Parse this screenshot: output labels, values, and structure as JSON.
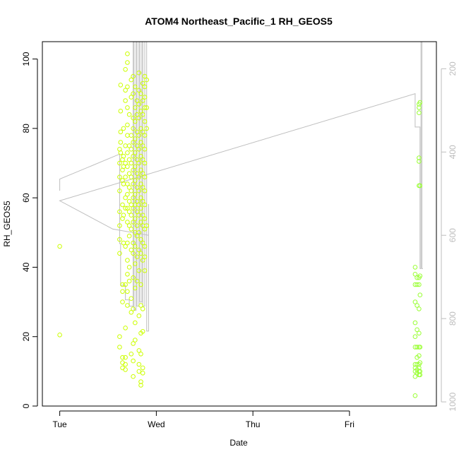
{
  "chart_data": {
    "type": "scatter",
    "title": "ATOM4 Northeast_Pacific_1 RH_GEOS5",
    "xlabel": "Date",
    "ylabel": "RH_GEOS5",
    "x_axis": {
      "type": "date",
      "ticks": [
        {
          "label": "Tue",
          "day": 0
        },
        {
          "label": "Wed",
          "day": 1
        },
        {
          "label": "Thu",
          "day": 2
        },
        {
          "label": "Fri",
          "day": 3
        }
      ],
      "xlim_days": [
        -0.18,
        3.9
      ]
    },
    "y_axis": {
      "ylim": [
        0,
        105
      ],
      "ticks": [
        0,
        20,
        40,
        60,
        80,
        100
      ]
    },
    "y2_axis": {
      "ticks": [
        200,
        400,
        600,
        800,
        1000
      ],
      "reversed": true,
      "ylim": [
        1010,
        135
      ],
      "color": "#bdbdbd"
    },
    "colors": {
      "points_early": "#ccff00",
      "points_late": "#99ff33",
      "profile_line": "#bebebe",
      "axis": "#000000"
    },
    "series": [
      {
        "name": "",
        "marker": "open-circle",
        "color_key": "points_early",
        "points": [
          [
            0.0,
            46
          ],
          [
            0.0,
            20.5
          ],
          [
            0.62,
            74
          ],
          [
            0.62,
            70
          ],
          [
            0.62,
            66
          ],
          [
            0.62,
            62
          ],
          [
            0.62,
            56
          ],
          [
            0.62,
            52
          ],
          [
            0.62,
            48
          ],
          [
            0.62,
            44
          ],
          [
            0.62,
            20
          ],
          [
            0.62,
            17
          ],
          [
            0.63,
            92.5
          ],
          [
            0.63,
            85
          ],
          [
            0.63,
            79
          ],
          [
            0.63,
            76
          ],
          [
            0.63,
            73
          ],
          [
            0.65,
            71
          ],
          [
            0.65,
            68
          ],
          [
            0.65,
            65
          ],
          [
            0.65,
            58
          ],
          [
            0.65,
            54
          ],
          [
            0.65,
            35
          ],
          [
            0.65,
            33
          ],
          [
            0.65,
            30
          ],
          [
            0.65,
            14
          ],
          [
            0.65,
            12.5
          ],
          [
            0.65,
            11
          ],
          [
            0.66,
            80
          ],
          [
            0.66,
            72
          ],
          [
            0.66,
            69
          ],
          [
            0.66,
            64
          ],
          [
            0.66,
            55
          ],
          [
            0.66,
            47
          ],
          [
            0.68,
            97
          ],
          [
            0.68,
            91
          ],
          [
            0.68,
            88
          ],
          [
            0.68,
            75
          ],
          [
            0.68,
            70
          ],
          [
            0.68,
            66
          ],
          [
            0.68,
            60
          ],
          [
            0.68,
            57
          ],
          [
            0.68,
            46
          ],
          [
            0.68,
            35
          ],
          [
            0.68,
            22.5
          ],
          [
            0.68,
            14
          ],
          [
            0.68,
            12
          ],
          [
            0.68,
            10.5
          ],
          [
            0.7,
            101.5
          ],
          [
            0.7,
            99
          ],
          [
            0.7,
            92
          ],
          [
            0.7,
            86
          ],
          [
            0.7,
            81
          ],
          [
            0.7,
            78
          ],
          [
            0.7,
            73
          ],
          [
            0.7,
            69
          ],
          [
            0.7,
            64
          ],
          [
            0.7,
            61
          ],
          [
            0.7,
            57
          ],
          [
            0.7,
            53
          ],
          [
            0.7,
            47
          ],
          [
            0.7,
            42
          ],
          [
            0.7,
            38
          ],
          [
            0.7,
            33
          ],
          [
            0.7,
            29
          ],
          [
            0.72,
            84
          ],
          [
            0.72,
            75
          ],
          [
            0.72,
            71
          ],
          [
            0.72,
            67
          ],
          [
            0.72,
            63
          ],
          [
            0.72,
            59
          ],
          [
            0.72,
            56
          ],
          [
            0.72,
            52
          ],
          [
            0.72,
            49
          ],
          [
            0.72,
            40
          ],
          [
            0.72,
            36
          ],
          [
            0.74,
            94
          ],
          [
            0.74,
            89
          ],
          [
            0.74,
            78
          ],
          [
            0.74,
            74
          ],
          [
            0.74,
            70
          ],
          [
            0.74,
            66
          ],
          [
            0.74,
            62
          ],
          [
            0.74,
            58
          ],
          [
            0.74,
            55
          ],
          [
            0.74,
            51
          ],
          [
            0.74,
            45
          ],
          [
            0.74,
            31
          ],
          [
            0.74,
            27
          ],
          [
            0.74,
            15
          ],
          [
            0.76,
            95
          ],
          [
            0.76,
            90
          ],
          [
            0.76,
            83
          ],
          [
            0.76,
            80
          ],
          [
            0.76,
            76
          ],
          [
            0.76,
            72
          ],
          [
            0.76,
            68
          ],
          [
            0.76,
            64
          ],
          [
            0.76,
            60
          ],
          [
            0.76,
            57
          ],
          [
            0.76,
            53
          ],
          [
            0.76,
            47
          ],
          [
            0.76,
            44
          ],
          [
            0.76,
            37
          ],
          [
            0.76,
            28
          ],
          [
            0.76,
            18
          ],
          [
            0.76,
            13
          ],
          [
            0.76,
            8.5
          ],
          [
            0.78,
            92
          ],
          [
            0.78,
            86
          ],
          [
            0.78,
            82
          ],
          [
            0.78,
            77
          ],
          [
            0.78,
            73
          ],
          [
            0.78,
            69
          ],
          [
            0.78,
            65
          ],
          [
            0.78,
            61
          ],
          [
            0.78,
            58
          ],
          [
            0.78,
            54
          ],
          [
            0.78,
            50
          ],
          [
            0.78,
            46
          ],
          [
            0.78,
            41
          ],
          [
            0.78,
            34
          ],
          [
            0.78,
            24
          ],
          [
            0.78,
            19
          ],
          [
            0.8,
            88
          ],
          [
            0.8,
            84
          ],
          [
            0.8,
            79
          ],
          [
            0.8,
            75
          ],
          [
            0.8,
            71
          ],
          [
            0.8,
            67
          ],
          [
            0.8,
            63
          ],
          [
            0.8,
            59
          ],
          [
            0.8,
            56
          ],
          [
            0.8,
            52
          ],
          [
            0.8,
            49
          ],
          [
            0.8,
            43
          ],
          [
            0.8,
            36
          ],
          [
            0.82,
            96
          ],
          [
            0.82,
            91
          ],
          [
            0.82,
            87
          ],
          [
            0.82,
            83
          ],
          [
            0.82,
            78
          ],
          [
            0.82,
            74
          ],
          [
            0.82,
            70
          ],
          [
            0.82,
            66
          ],
          [
            0.82,
            62
          ],
          [
            0.82,
            58
          ],
          [
            0.82,
            55
          ],
          [
            0.82,
            50
          ],
          [
            0.82,
            45
          ],
          [
            0.82,
            39
          ],
          [
            0.82,
            26
          ],
          [
            0.82,
            16
          ],
          [
            0.82,
            12
          ],
          [
            0.82,
            10
          ],
          [
            0.84,
            90
          ],
          [
            0.84,
            85
          ],
          [
            0.84,
            80
          ],
          [
            0.84,
            76
          ],
          [
            0.84,
            72
          ],
          [
            0.84,
            68
          ],
          [
            0.84,
            64
          ],
          [
            0.84,
            60
          ],
          [
            0.84,
            57
          ],
          [
            0.84,
            53
          ],
          [
            0.84,
            48
          ],
          [
            0.84,
            44
          ],
          [
            0.84,
            35
          ],
          [
            0.84,
            29
          ],
          [
            0.84,
            21
          ],
          [
            0.84,
            15
          ],
          [
            0.84,
            7
          ],
          [
            0.84,
            6
          ],
          [
            0.86,
            93
          ],
          [
            0.86,
            88
          ],
          [
            0.86,
            84
          ],
          [
            0.86,
            79
          ],
          [
            0.86,
            75
          ],
          [
            0.86,
            71
          ],
          [
            0.86,
            67
          ],
          [
            0.86,
            63
          ],
          [
            0.86,
            59
          ],
          [
            0.86,
            55
          ],
          [
            0.86,
            52
          ],
          [
            0.86,
            47
          ],
          [
            0.86,
            42
          ],
          [
            0.86,
            28
          ],
          [
            0.86,
            21.5
          ],
          [
            0.86,
            11
          ],
          [
            0.86,
            9.5
          ],
          [
            0.88,
            95
          ],
          [
            0.88,
            92
          ],
          [
            0.88,
            89
          ],
          [
            0.88,
            86
          ],
          [
            0.88,
            82
          ],
          [
            0.88,
            78
          ],
          [
            0.88,
            74
          ],
          [
            0.88,
            70
          ],
          [
            0.88,
            66
          ],
          [
            0.88,
            62
          ],
          [
            0.88,
            58
          ],
          [
            0.88,
            54
          ],
          [
            0.88,
            51
          ],
          [
            0.88,
            46
          ],
          [
            0.88,
            43
          ],
          [
            0.88,
            39
          ],
          [
            0.9,
            94
          ],
          [
            0.9,
            86
          ],
          [
            0.9,
            80
          ],
          [
            0.9,
            52
          ]
        ]
      },
      {
        "name": "",
        "marker": "open-circle",
        "color_key": "points_late",
        "points": [
          [
            3.68,
            40
          ],
          [
            3.68,
            38
          ],
          [
            3.68,
            35
          ],
          [
            3.68,
            30
          ],
          [
            3.68,
            24
          ],
          [
            3.68,
            20
          ],
          [
            3.68,
            17
          ],
          [
            3.68,
            12
          ],
          [
            3.68,
            11
          ],
          [
            3.68,
            10
          ],
          [
            3.68,
            8.5
          ],
          [
            3.68,
            3
          ],
          [
            3.7,
            37
          ],
          [
            3.7,
            35
          ],
          [
            3.7,
            29
          ],
          [
            3.7,
            22
          ],
          [
            3.7,
            17
          ],
          [
            3.7,
            14
          ],
          [
            3.7,
            12
          ],
          [
            3.7,
            10.5
          ],
          [
            3.7,
            9.5
          ],
          [
            3.72,
            87
          ],
          [
            3.72,
            86
          ],
          [
            3.72,
            84.5
          ],
          [
            3.72,
            71.5
          ],
          [
            3.72,
            70.5
          ],
          [
            3.72,
            63.5
          ],
          [
            3.72,
            37
          ],
          [
            3.72,
            35
          ],
          [
            3.72,
            28
          ],
          [
            3.72,
            21
          ],
          [
            3.72,
            17
          ],
          [
            3.72,
            14.5
          ],
          [
            3.72,
            12
          ],
          [
            3.72,
            11
          ],
          [
            3.72,
            10
          ],
          [
            3.72,
            9
          ],
          [
            3.73,
            87.5
          ],
          [
            3.73,
            63.5
          ],
          [
            3.73,
            37.5
          ],
          [
            3.73,
            32
          ],
          [
            3.73,
            17
          ],
          [
            3.73,
            12.5
          ],
          [
            3.73,
            10
          ],
          [
            3.73,
            9
          ]
        ]
      }
    ],
    "profile_line": {
      "axis": "y2",
      "color_key": "profile_line",
      "points": [
        [
          0.0,
          493
        ],
        [
          0.0,
          465
        ],
        [
          0.62,
          405
        ],
        [
          0.62,
          620
        ],
        [
          0.63,
          620
        ],
        [
          0.63,
          720
        ],
        [
          0.68,
          720
        ],
        [
          0.68,
          755
        ],
        [
          0.72,
          755
        ],
        [
          0.72,
          770
        ],
        [
          0.76,
          770
        ],
        [
          0.76,
          135
        ],
        [
          0.77,
          135
        ],
        [
          0.77,
          780
        ],
        [
          0.79,
          780
        ],
        [
          0.79,
          135
        ],
        [
          0.8,
          135
        ],
        [
          0.8,
          770
        ],
        [
          0.82,
          770
        ],
        [
          0.82,
          135
        ],
        [
          0.83,
          135
        ],
        [
          0.83,
          760
        ],
        [
          0.85,
          760
        ],
        [
          0.85,
          135
        ],
        [
          0.86,
          135
        ],
        [
          0.86,
          770
        ],
        [
          0.88,
          770
        ],
        [
          0.88,
          135
        ],
        [
          0.9,
          135
        ],
        [
          0.9,
          830
        ],
        [
          0.92,
          830
        ],
        [
          0.92,
          525
        ],
        [
          0.92,
          600
        ],
        [
          0.55,
          585
        ],
        [
          0.0,
          517
        ],
        [
          3.68,
          260
        ],
        [
          3.68,
          340
        ],
        [
          3.73,
          340
        ],
        [
          3.73,
          680
        ],
        [
          3.74,
          680
        ],
        [
          3.74,
          135
        ],
        [
          3.75,
          135
        ],
        [
          3.75,
          680
        ],
        [
          3.76,
          680
        ]
      ]
    }
  }
}
